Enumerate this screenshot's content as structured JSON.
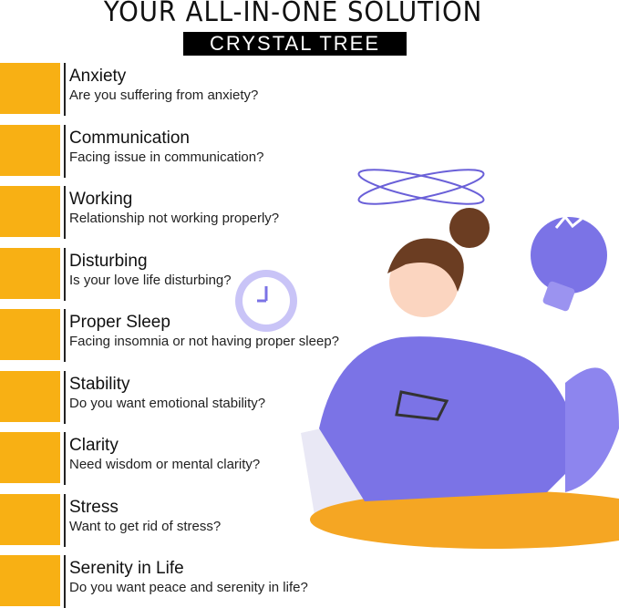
{
  "header": {
    "title": "YOUR ALL-IN-ONE SOLUTION",
    "brand": "CRYSTAL TREE"
  },
  "colors": {
    "accent": "#F8B014",
    "illustration": "#7B73E6",
    "desk": "#F5A623"
  },
  "items": [
    {
      "title": "Anxiety",
      "subtitle": "Are you suffering from anxiety?"
    },
    {
      "title": "Communication",
      "subtitle": "Facing issue in communication?"
    },
    {
      "title": "Working",
      "subtitle": "Relationship not working properly?"
    },
    {
      "title": "Disturbing",
      "subtitle": "Is your love life disturbing?"
    },
    {
      "title": "Proper Sleep",
      "subtitle": "Facing insomnia or not having proper sleep?"
    },
    {
      "title": "Stability",
      "subtitle": "Do you want emotional stability?"
    },
    {
      "title": "Clarity",
      "subtitle": "Need wisdom or mental clarity?"
    },
    {
      "title": "Stress",
      "subtitle": "Want to get rid of stress?"
    },
    {
      "title": "Serenity in Life",
      "subtitle": "Do you want peace and serenity in life?"
    }
  ]
}
